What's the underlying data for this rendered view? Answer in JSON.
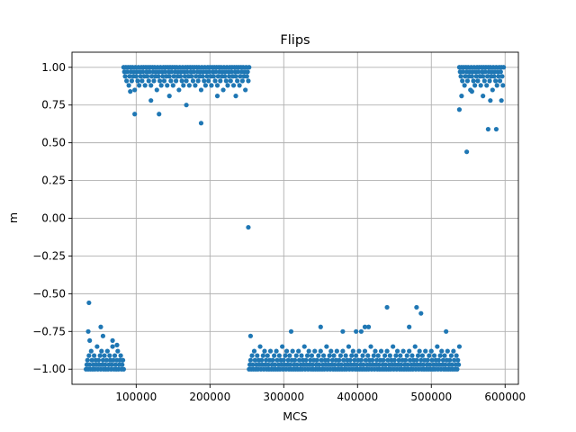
{
  "chart_data": {
    "type": "scatter",
    "title": "Flips",
    "xlabel": "MCS",
    "ylabel": "m",
    "xlim": [
      13000,
      618000
    ],
    "ylim": [
      -1.1,
      1.1
    ],
    "grid": true,
    "marker_color": "#1f77b4",
    "x_ticks": [
      100000,
      200000,
      300000,
      400000,
      500000,
      600000
    ],
    "x_tick_labels": [
      "100000",
      "200000",
      "300000",
      "400000",
      "500000",
      "600000"
    ],
    "y_ticks": [
      -1.0,
      -0.75,
      -0.5,
      -0.25,
      0.0,
      0.25,
      0.5,
      0.75,
      1.0
    ],
    "y_tick_labels": [
      "−1.00",
      "−0.75",
      "−0.50",
      "−0.25",
      "0.00",
      "0.25",
      "0.50",
      "0.75",
      "1.00"
    ],
    "series": [
      {
        "x_range": [
          32000,
          83000
        ],
        "spacing": 1000,
        "values": [
          -1.0,
          -0.97,
          -0.94,
          -1.0,
          -0.91,
          -0.97,
          -1.0,
          -0.88,
          -0.94,
          -1.0,
          -0.97,
          -0.91,
          -1.0,
          -0.94,
          -0.97,
          -0.85,
          -1.0,
          -0.94,
          -0.97,
          -0.91,
          -1.0,
          -0.88,
          -0.97,
          -0.94,
          -1.0,
          -0.91,
          -0.97,
          -1.0,
          -0.94,
          -0.88,
          -1.0,
          -0.97,
          -0.91,
          -0.94,
          -1.0,
          -0.97,
          -0.85,
          -0.94,
          -1.0,
          -0.91,
          -0.97,
          -1.0,
          -0.94,
          -0.88,
          -1.0,
          -0.97,
          -0.94,
          -0.91,
          -1.0,
          -0.97,
          -0.94,
          -1.0
        ]
      },
      {
        "x_range": [
          83000,
          253000
        ],
        "spacing": 1000,
        "values": [
          1.0,
          0.97,
          0.94,
          1.0,
          0.91,
          0.97,
          1.0,
          0.88,
          0.94,
          1.0,
          0.97,
          0.91,
          1.0,
          0.94,
          0.97,
          0.85,
          1.0,
          0.94,
          0.97,
          0.91,
          1.0,
          0.88,
          0.97,
          0.94,
          1.0,
          0.91,
          0.97,
          1.0,
          0.94,
          0.88
        ]
      },
      {
        "x_range": [
          253000,
          538000
        ],
        "spacing": 1000,
        "values": [
          -1.0,
          -0.97,
          -0.94,
          -1.0,
          -0.91,
          -0.97,
          -1.0,
          -0.88,
          -0.94,
          -1.0,
          -0.97,
          -0.91,
          -1.0,
          -0.94,
          -0.97,
          -0.85,
          -1.0,
          -0.94,
          -0.97,
          -0.91,
          -1.0,
          -0.88,
          -0.97,
          -0.94,
          -1.0,
          -0.91,
          -0.97,
          -1.0,
          -0.94,
          -0.88
        ]
      },
      {
        "x_range": [
          538000,
          598000
        ],
        "spacing": 1000,
        "values": [
          1.0,
          0.97,
          0.94,
          1.0,
          0.91,
          0.97,
          1.0,
          0.88,
          0.94,
          1.0,
          0.97,
          0.91,
          1.0,
          0.94,
          0.97,
          0.85,
          1.0,
          0.94,
          0.97,
          0.91,
          1.0,
          0.88,
          0.97,
          0.94,
          1.0,
          0.91,
          0.97,
          1.0,
          0.94,
          0.88
        ]
      }
    ],
    "outliers": [
      {
        "x": 36000,
        "y": -0.56
      },
      {
        "x": 35000,
        "y": -0.75
      },
      {
        "x": 37000,
        "y": -0.81
      },
      {
        "x": 52000,
        "y": -0.72
      },
      {
        "x": 55000,
        "y": -0.78
      },
      {
        "x": 68000,
        "y": -0.81
      },
      {
        "x": 74000,
        "y": -0.84
      },
      {
        "x": 98000,
        "y": 0.69
      },
      {
        "x": 131000,
        "y": 0.69
      },
      {
        "x": 168000,
        "y": 0.75
      },
      {
        "x": 188000,
        "y": 0.63
      },
      {
        "x": 92000,
        "y": 0.84
      },
      {
        "x": 120000,
        "y": 0.78
      },
      {
        "x": 145000,
        "y": 0.81
      },
      {
        "x": 210000,
        "y": 0.81
      },
      {
        "x": 235000,
        "y": 0.81
      },
      {
        "x": 252000,
        "y": -0.06
      },
      {
        "x": 255000,
        "y": -0.78
      },
      {
        "x": 310000,
        "y": -0.75
      },
      {
        "x": 350000,
        "y": -0.72
      },
      {
        "x": 380000,
        "y": -0.75
      },
      {
        "x": 398000,
        "y": -0.75
      },
      {
        "x": 405000,
        "y": -0.75
      },
      {
        "x": 410000,
        "y": -0.72
      },
      {
        "x": 415000,
        "y": -0.72
      },
      {
        "x": 440000,
        "y": -0.59
      },
      {
        "x": 470000,
        "y": -0.72
      },
      {
        "x": 480000,
        "y": -0.59
      },
      {
        "x": 486000,
        "y": -0.63
      },
      {
        "x": 520000,
        "y": -0.75
      },
      {
        "x": 538000,
        "y": 0.72
      },
      {
        "x": 541000,
        "y": 0.81
      },
      {
        "x": 548000,
        "y": 0.44
      },
      {
        "x": 555000,
        "y": 0.84
      },
      {
        "x": 570000,
        "y": 0.81
      },
      {
        "x": 577000,
        "y": 0.59
      },
      {
        "x": 580000,
        "y": 0.78
      },
      {
        "x": 588000,
        "y": 0.59
      },
      {
        "x": 595000,
        "y": 0.78
      }
    ]
  }
}
